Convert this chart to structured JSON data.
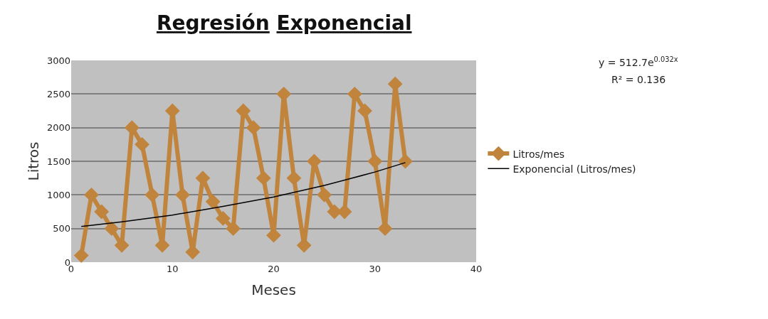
{
  "chart_data": {
    "type": "line",
    "title": "Regresión Exponencial",
    "xlabel": "Meses",
    "ylabel": "Litros",
    "xlim": [
      0,
      40
    ],
    "xticks": [
      0,
      10,
      20,
      30,
      40
    ],
    "ylim": [
      0,
      3000
    ],
    "yticks": [
      0,
      500,
      1000,
      1500,
      2000,
      2500,
      3000
    ],
    "grid": "y",
    "legend": "right",
    "marker": "diamond",
    "annotations": [
      "y = 512.7e$^{0.032x}$",
      "R² = 0.136"
    ],
    "series": [
      {
        "name": "Litros/mes",
        "color": "#c0843d",
        "x": [
          1,
          2,
          3,
          4,
          5,
          6,
          7,
          8,
          9,
          10,
          11,
          12,
          13,
          14,
          15,
          16,
          17,
          18,
          19,
          20,
          21,
          22,
          23,
          24,
          25,
          26,
          27,
          28,
          29,
          30,
          31,
          32,
          33
        ],
        "values": [
          100,
          1000,
          750,
          500,
          250,
          2000,
          1750,
          1000,
          250,
          2250,
          1000,
          150,
          1250,
          900,
          650,
          500,
          2250,
          2000,
          1250,
          400,
          2500,
          1250,
          250,
          1500,
          1000,
          750,
          750,
          2500,
          2250,
          1500,
          500,
          2650,
          1500
        ]
      },
      {
        "name": "Exponencial (Litros/mes)",
        "color": "#000000",
        "type": "line",
        "marker": "none",
        "x": [
          1,
          5,
          10,
          15,
          20,
          25,
          30,
          33
        ],
        "values": [
          530,
          600,
          700,
          830,
          970,
          1140,
          1340,
          1480
        ]
      }
    ]
  }
}
